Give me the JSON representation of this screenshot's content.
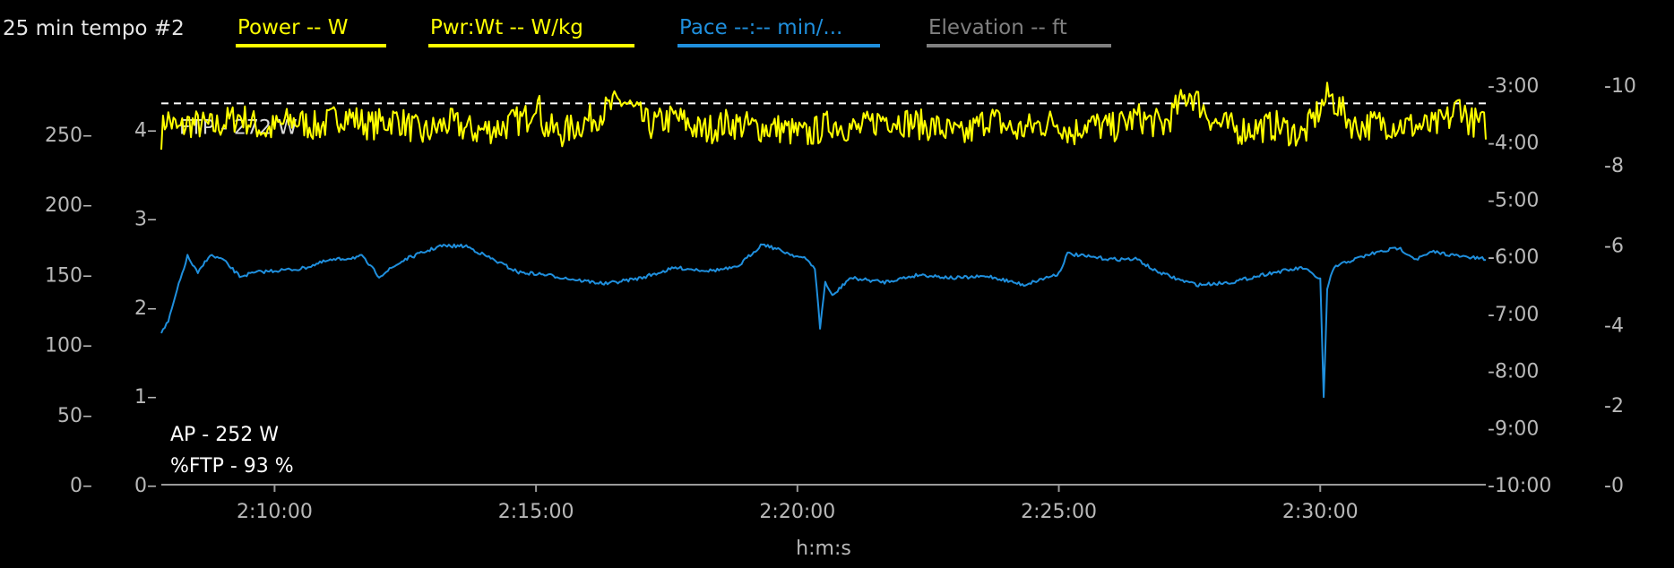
{
  "header": {
    "title": "25 min tempo #2",
    "legend": [
      {
        "label": "Power  -- W",
        "color": "#ffff00"
      },
      {
        "label": "Pwr:Wt  -- W/kg",
        "color": "#ffff00"
      },
      {
        "label": "Pace  --:-- min/...",
        "color": "#1f8fdd"
      },
      {
        "label": "Elevation  -- ft",
        "color": "#808080"
      }
    ]
  },
  "chart_data": {
    "type": "line",
    "xlabel": "h:m:s",
    "x_ticks": [
      "2:10:00",
      "2:15:00",
      "2:20:00",
      "2:25:00",
      "2:30:00"
    ],
    "x_tick_seconds": [
      7800,
      8100,
      8400,
      8700,
      9000
    ],
    "xlim": [
      "2:07:50",
      "2:33:10"
    ],
    "xlim_seconds": [
      7670,
      9190
    ],
    "axes": {
      "power_w": {
        "ticks": [
          0,
          50,
          100,
          150,
          200,
          250
        ],
        "lim": [
          0,
          285
        ]
      },
      "pwr_wt_wkg": {
        "ticks": [
          0,
          1,
          2,
          3,
          4
        ],
        "lim": [
          0,
          4.5
        ]
      },
      "pace_min": {
        "ticks": [
          "-3:00",
          "-4:00",
          "-5:00",
          "-6:00",
          "-7:00",
          "-8:00",
          "-9:00",
          "-10:00"
        ],
        "lim_min": [
          3,
          10
        ]
      },
      "elevation_ft": {
        "ticks": [
          0,
          2,
          4,
          6,
          8,
          10
        ],
        "lim": [
          0,
          10
        ]
      }
    },
    "ftp_line": {
      "label": "FTP - 272 W",
      "value_w": 272
    },
    "annotations": [
      "AP - 252 W",
      "%FTP - 93 %"
    ],
    "series": [
      {
        "key": "power",
        "color": "#ffff00",
        "axis": "power_w",
        "noise": 11,
        "x": [
          7670,
          7676,
          7690,
          7700,
          7730,
          7760,
          7790,
          7820,
          7850,
          7880,
          7910,
          7940,
          7970,
          8000,
          8030,
          8060,
          8090,
          8100,
          8110,
          8130,
          8160,
          8200,
          8230,
          8260,
          8290,
          8320,
          8350,
          8380,
          8410,
          8440,
          8470,
          8500,
          8530,
          8560,
          8590,
          8620,
          8650,
          8680,
          8700,
          8715,
          8730,
          8760,
          8790,
          8820,
          8850,
          8880,
          8905,
          8920,
          8950,
          8980,
          9010,
          9040,
          9070,
          9100,
          9130,
          9150,
          9160,
          9170,
          9190
        ],
        "y": [
          250,
          262,
          252,
          258,
          255,
          263,
          252,
          260,
          255,
          264,
          256,
          261,
          250,
          258,
          252,
          255,
          262,
          276,
          255,
          251,
          260,
          274,
          256,
          262,
          252,
          258,
          255,
          254,
          249,
          258,
          253,
          262,
          258,
          255,
          248,
          262,
          252,
          257,
          259,
          250,
          258,
          254,
          262,
          256,
          280,
          258,
          253,
          254,
          256,
          249,
          278,
          255,
          258,
          256,
          255,
          262,
          272,
          260,
          256
        ]
      },
      {
        "key": "pace",
        "color": "#1f8fdd",
        "axis": "pace_min",
        "noise": 0.03,
        "x": [
          7670,
          7678,
          7688,
          7700,
          7712,
          7725,
          7740,
          7760,
          7780,
          7800,
          7830,
          7860,
          7900,
          7920,
          7950,
          7990,
          8020,
          8050,
          8080,
          8110,
          8150,
          8180,
          8220,
          8260,
          8300,
          8330,
          8360,
          8390,
          8410,
          8420,
          8426,
          8432,
          8440,
          8460,
          8500,
          8540,
          8580,
          8620,
          8660,
          8700,
          8710,
          8730,
          8760,
          8790,
          8810,
          8840,
          8860,
          8900,
          8940,
          8980,
          9000,
          9004,
          9008,
          9015,
          9030,
          9060,
          9090,
          9110,
          9130,
          9160,
          9190
        ],
        "y": [
          7.33,
          7.15,
          6.6,
          6.0,
          6.3,
          5.98,
          6.05,
          6.35,
          6.28,
          6.25,
          6.22,
          6.08,
          6.0,
          6.35,
          6.05,
          5.82,
          5.82,
          6.05,
          6.28,
          6.32,
          6.42,
          6.48,
          6.38,
          6.2,
          6.25,
          6.2,
          5.78,
          5.95,
          6.05,
          6.2,
          7.25,
          6.45,
          6.7,
          6.38,
          6.45,
          6.32,
          6.38,
          6.35,
          6.5,
          6.3,
          5.95,
          6.0,
          6.05,
          6.05,
          6.25,
          6.42,
          6.5,
          6.45,
          6.3,
          6.2,
          6.4,
          8.48,
          6.6,
          6.2,
          6.1,
          5.95,
          5.85,
          6.05,
          5.92,
          6.0,
          6.05
        ]
      }
    ]
  }
}
